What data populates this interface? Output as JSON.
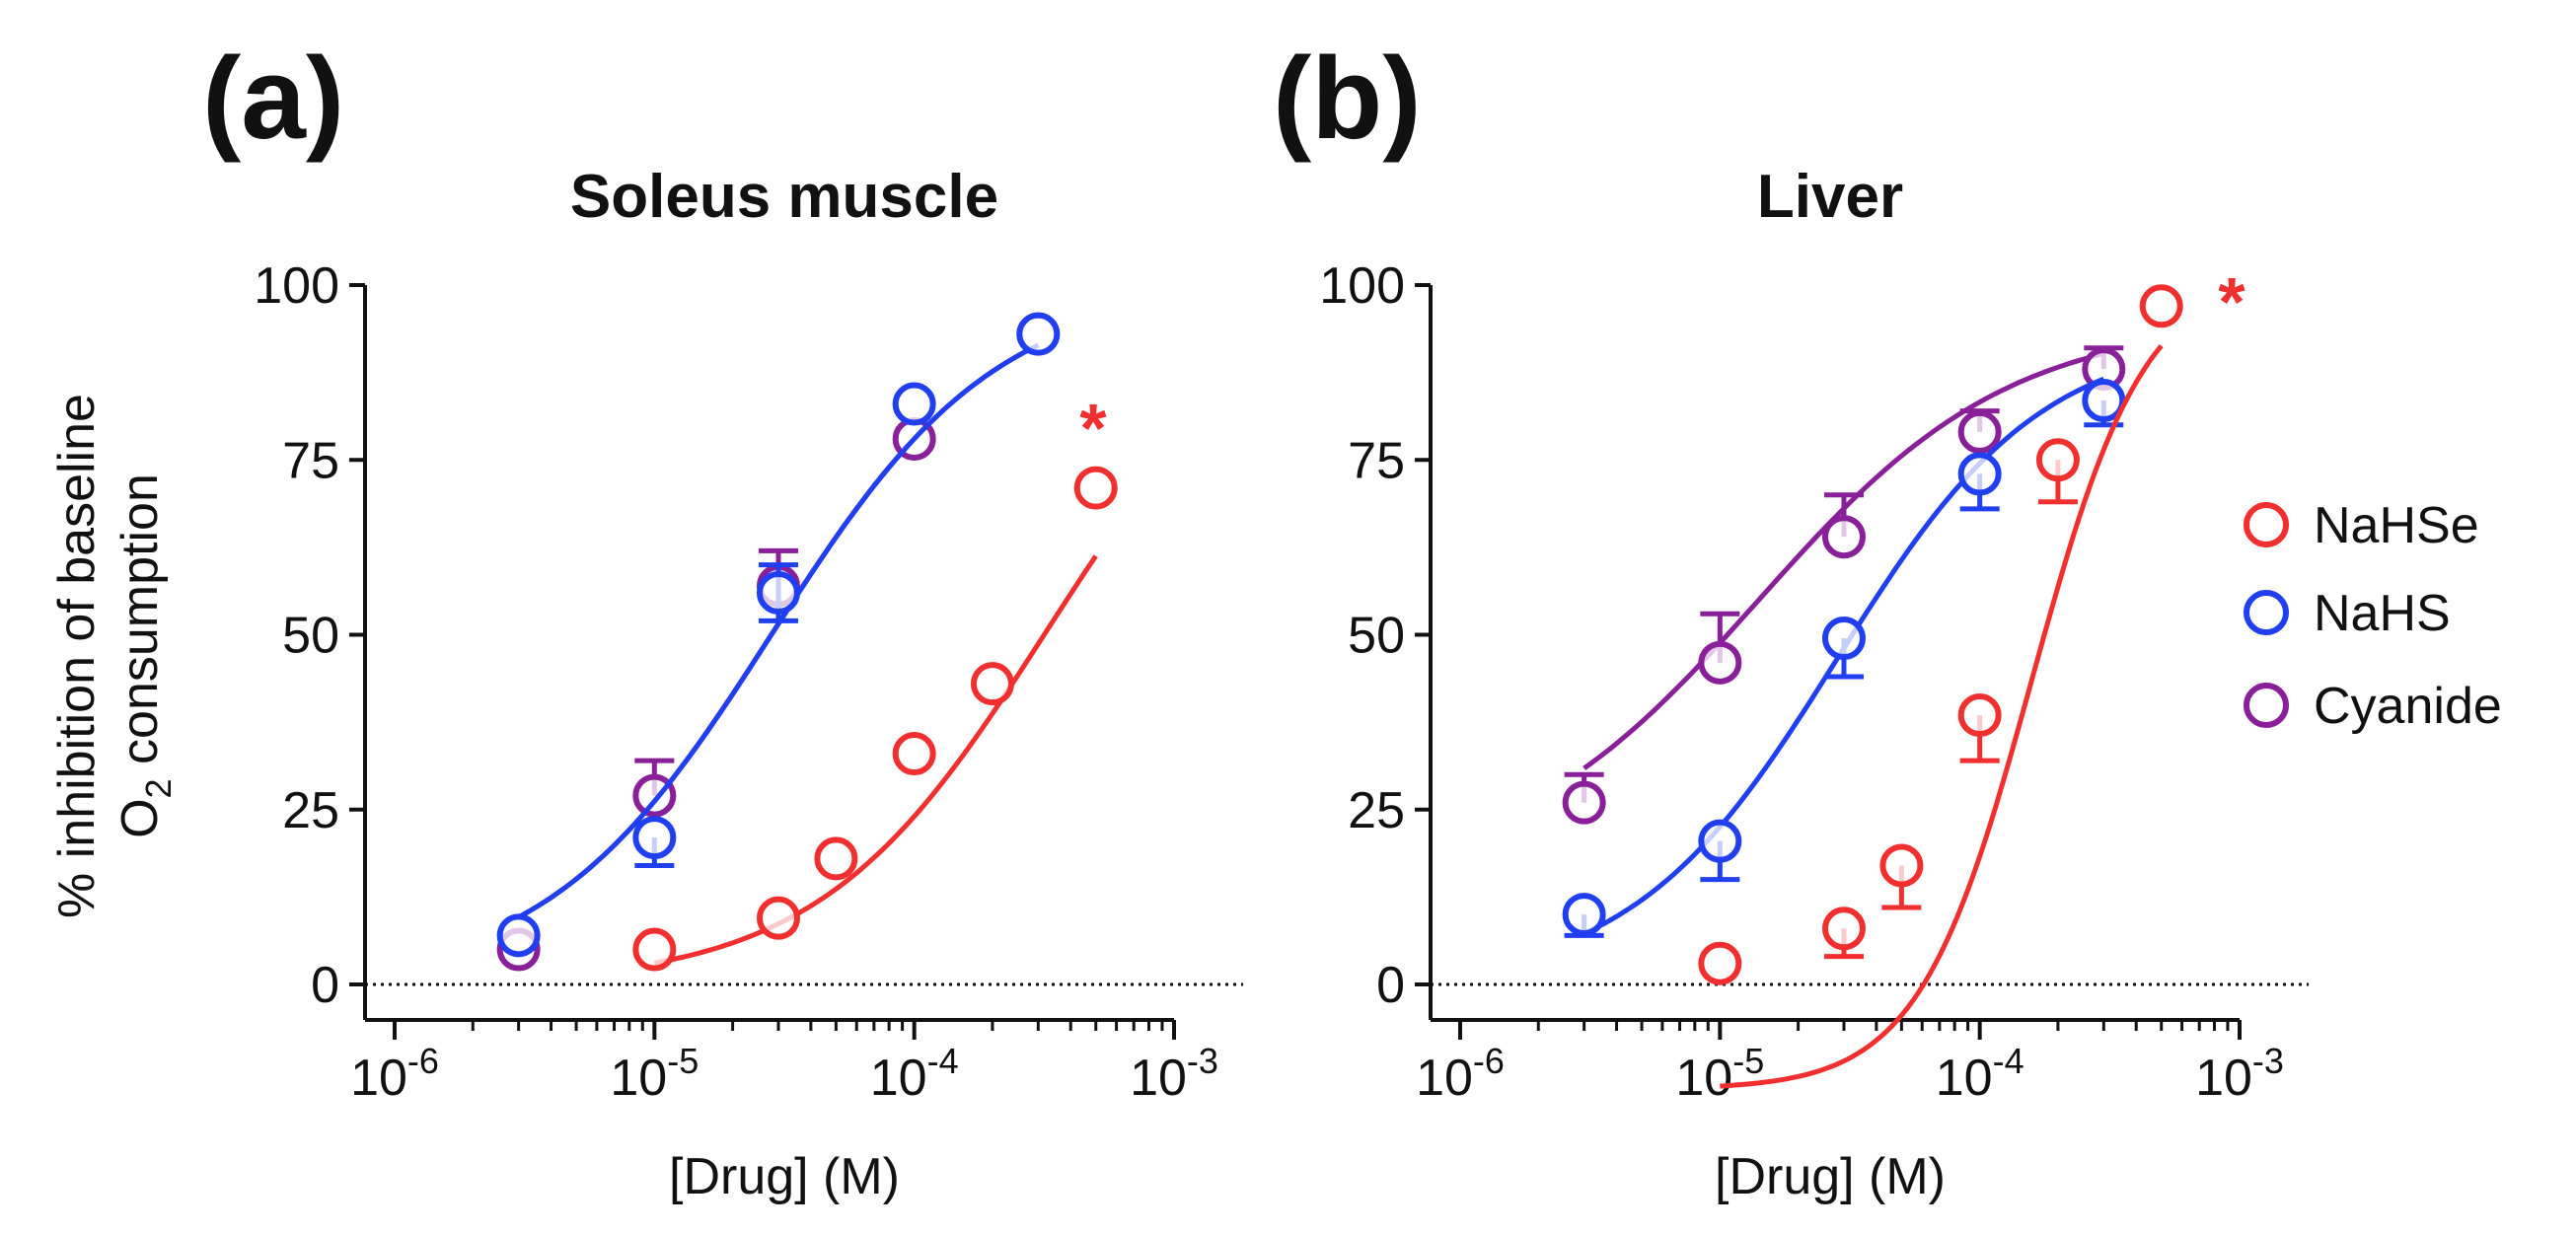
{
  "colors": {
    "NaHSe": "#f22f2f",
    "NaHS": "#1f3ff0",
    "Cyanide": "#8a1f9a",
    "axis": "#111111"
  },
  "chart_data": [
    {
      "type": "scatter",
      "panel": "(a)",
      "title": "Soleus muscle",
      "xlabel": "[Drug] (M)",
      "ylabel_line1": "% inhibition of baseline",
      "ylabel_line2_main": "O",
      "ylabel_line2_sub": "2",
      "ylabel_line2_rest": " consumption",
      "x_scale": "log",
      "xlim": [
        1e-06,
        0.001
      ],
      "ylim": [
        0,
        100
      ],
      "xticks": [
        {
          "base": "10",
          "exp": "-6"
        },
        {
          "base": "10",
          "exp": "-5"
        },
        {
          "base": "10",
          "exp": "-4"
        },
        {
          "base": "10",
          "exp": "-3"
        }
      ],
      "yticks": [
        "0",
        "25",
        "50",
        "75",
        "100"
      ],
      "annotation": "*",
      "series": [
        {
          "name": "Cyanide",
          "x": [
            3e-06,
            1e-05,
            3e-05,
            0.0001,
            0.0003
          ],
          "y": [
            5,
            27,
            57,
            78,
            93
          ],
          "err_up": [
            0,
            5,
            5,
            0,
            0
          ],
          "err_dn": [
            0,
            0,
            0,
            0,
            0
          ],
          "fit": {
            "bottom": 0,
            "top": 100,
            "logEC50": -4.55,
            "hill": 1.0
          }
        },
        {
          "name": "NaHS",
          "x": [
            3e-06,
            1e-05,
            3e-05,
            0.0001,
            0.0003
          ],
          "y": [
            7,
            21,
            56,
            83,
            93
          ],
          "err_up": [
            0,
            0,
            4,
            0,
            0
          ],
          "err_dn": [
            0,
            4,
            4,
            0,
            0
          ],
          "fit": {
            "bottom": 0,
            "top": 100,
            "logEC50": -4.55,
            "hill": 1.0
          }
        },
        {
          "name": "NaHSe",
          "x": [
            1e-05,
            3e-05,
            5e-05,
            0.0001,
            0.0002,
            0.0005
          ],
          "y": [
            5,
            9.5,
            18,
            33,
            43,
            71
          ],
          "err_up": [
            0,
            0,
            0,
            0,
            0,
            0
          ],
          "err_dn": [
            0,
            0,
            0,
            0,
            0,
            0
          ],
          "fit": {
            "bottom": 0,
            "top": 100,
            "logEC50": -3.5,
            "hill": 1.0
          }
        }
      ]
    },
    {
      "type": "scatter",
      "panel": "(b)",
      "title": "Liver",
      "xlabel": "[Drug] (M)",
      "x_scale": "log",
      "xlim": [
        1e-06,
        0.001
      ],
      "ylim": [
        0,
        100
      ],
      "xticks": [
        {
          "base": "10",
          "exp": "-6"
        },
        {
          "base": "10",
          "exp": "-5"
        },
        {
          "base": "10",
          "exp": "-4"
        },
        {
          "base": "10",
          "exp": "-3"
        }
      ],
      "yticks": [
        "0",
        "25",
        "50",
        "75",
        "100"
      ],
      "annotation": "*",
      "series": [
        {
          "name": "Cyanide",
          "x": [
            3e-06,
            1e-05,
            3e-05,
            0.0001,
            0.0003
          ],
          "y": [
            26,
            46,
            64,
            79,
            88
          ],
          "err_up": [
            4,
            7,
            6,
            3,
            3
          ],
          "err_dn": [
            0,
            0,
            0,
            0,
            0
          ],
          "fit": {
            "bottom": 15,
            "top": 95,
            "logEC50": -4.85,
            "hill": 0.9
          }
        },
        {
          "name": "NaHS",
          "x": [
            3e-06,
            1e-05,
            3e-05,
            0.0001,
            0.0003
          ],
          "y": [
            10,
            20.5,
            49.5,
            73,
            83.5
          ],
          "err_up": [
            0,
            0,
            0,
            0,
            0
          ],
          "err_dn": [
            3,
            5.5,
            5.5,
            5,
            3.5
          ],
          "fit": {
            "bottom": 0,
            "top": 93,
            "logEC50": -4.55,
            "hill": 1.1
          }
        },
        {
          "name": "NaHSe",
          "x": [
            1e-05,
            3e-05,
            5e-05,
            0.0001,
            0.0002,
            0.0005
          ],
          "y": [
            3,
            8,
            17,
            38.5,
            75,
            97
          ],
          "err_up": [
            0,
            0,
            0,
            0,
            0,
            0
          ],
          "err_dn": [
            0,
            4,
            6,
            6.5,
            6,
            0
          ],
          "fit": {
            "bottom": -15,
            "top": 102,
            "logEC50": -3.8,
            "hill": 2.0
          }
        }
      ]
    }
  ],
  "legend": [
    "NaHSe",
    "NaHS",
    "Cyanide"
  ]
}
